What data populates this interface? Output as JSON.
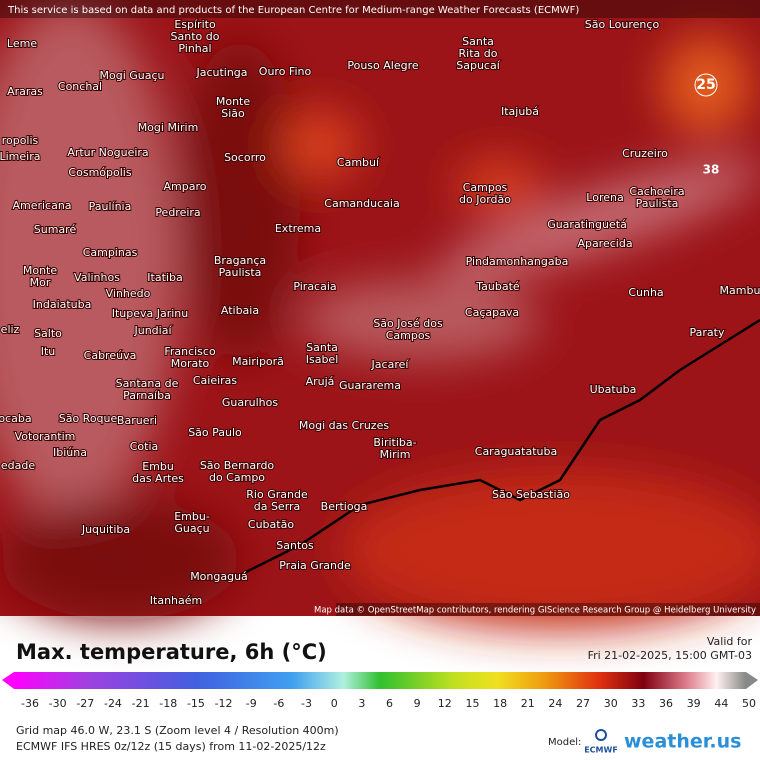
{
  "header": {
    "attribution": "This service is based on data and products of the European Centre for Medium-range Weather Forecasts (ECMWF)"
  },
  "map": {
    "credits": "Map data © OpenStreetMap contributors, rendering GIScience Research Group @ Heidelberg University",
    "highlights": [
      "25",
      "38"
    ],
    "cities": [
      [
        "Leme"
      ],
      [
        "Araras"
      ],
      [
        "Conchal"
      ],
      [
        "Mogi Guaçu"
      ],
      [
        "Jacutinga"
      ],
      [
        "Ouro Fino"
      ],
      [
        "Pouso Alegre"
      ],
      [
        "Santa",
        "Rita do",
        "Sapucaí"
      ],
      [
        "São Lourenço"
      ],
      [
        "Espírito",
        "Santo do",
        "Pinhal"
      ],
      [
        "Monte",
        "Sião"
      ],
      [
        "Mogi Mirim"
      ],
      [
        "Itajubá"
      ],
      [
        "Artur Nogueira"
      ],
      [
        "Socorro"
      ],
      [
        "Cambuí"
      ],
      [
        "Cruzeiro"
      ],
      [
        "Cosmópolis"
      ],
      [
        "Limeira"
      ],
      [
        "ropolis"
      ],
      [
        "Amparo"
      ],
      [
        "Campos",
        "do Jordão"
      ],
      [
        "Cachoeira",
        "Paulista"
      ],
      [
        "Lorena"
      ],
      [
        "Americana"
      ],
      [
        "Paulínia"
      ],
      [
        "Pedreira"
      ],
      [
        "Camanducaia"
      ],
      [
        "Guaratinguetá"
      ],
      [
        "Sumaré"
      ],
      [
        "Extrema"
      ],
      [
        "Aparecida"
      ],
      [
        "Campinas"
      ],
      [
        "Bragança",
        "Paulista"
      ],
      [
        "Pindamonhangaba"
      ],
      [
        "Monte",
        "Mor"
      ],
      [
        "Valinhos"
      ],
      [
        "Itatiba"
      ],
      [
        "Vinhedo"
      ],
      [
        "Piracaia"
      ],
      [
        "Taubaté"
      ],
      [
        "Cunha"
      ],
      [
        "Mambu"
      ],
      [
        "Indaiatuba"
      ],
      [
        "Itupeva Jarinu"
      ],
      [
        "Atibaia"
      ],
      [
        "Caçapava"
      ],
      [
        "eliz"
      ],
      [
        "Salto"
      ],
      [
        "Jundiaí"
      ],
      [
        "São José dos",
        "Campos"
      ],
      [
        "Paraty"
      ],
      [
        "Itu"
      ],
      [
        "Cabreúva"
      ],
      [
        "Santa",
        "Isabel"
      ],
      [
        "Francisco",
        "Morato"
      ],
      [
        "Mairiporã"
      ],
      [
        "Jacareí"
      ],
      [
        "Caieiras"
      ],
      [
        "Santana de",
        "Parnaíba"
      ],
      [
        "Arujá"
      ],
      [
        "Guararema"
      ],
      [
        "Ubatuba"
      ],
      [
        "Guarulhos"
      ],
      [
        "ocaba"
      ],
      [
        "São Roque"
      ],
      [
        "Barueri"
      ],
      [
        "Mogi das Cruzes"
      ],
      [
        "São Paulo"
      ],
      [
        "Votorantim"
      ],
      [
        "Biritiba-",
        "Mirim"
      ],
      [
        "Cotia"
      ],
      [
        "Caraguatatuba"
      ],
      [
        "Ibiúna"
      ],
      [
        "São Bernardo",
        "do Campo"
      ],
      [
        "Embu",
        "das Artes"
      ],
      [
        "edade"
      ],
      [
        "Rio Grande",
        "da Serra"
      ],
      [
        "São Sebastião"
      ],
      [
        "Bertioga"
      ],
      [
        "Embu-",
        "Guaçu"
      ],
      [
        "Cubatão"
      ],
      [
        "Juquitiba"
      ],
      [
        "Santos"
      ],
      [
        "Praia Grande"
      ],
      [
        "Mongaguá"
      ],
      [
        "Itanhaém"
      ]
    ]
  },
  "legend": {
    "title": "Max. temperature, 6h (°C)",
    "valid_label": "Valid for",
    "valid_time": "Fri 21-02-2025, 15:00 GMT-03",
    "ticks": [
      -36,
      -30,
      -27,
      -24,
      -21,
      -18,
      -15,
      -12,
      -9,
      -6,
      -3,
      0,
      3,
      6,
      9,
      12,
      15,
      18,
      21,
      24,
      27,
      30,
      33,
      36,
      39,
      44,
      50
    ]
  },
  "footer": {
    "grid_info": "Grid map 46.0 W, 23.1 S (Zoom level 4 / Resolution 400m)",
    "model_info": "ECMWF IFS HRES 0z/12z (15 days) from 11-02-2025/12z",
    "model_label": "Model:",
    "ecmwf": "ECMWF",
    "brand": "weather.us"
  }
}
